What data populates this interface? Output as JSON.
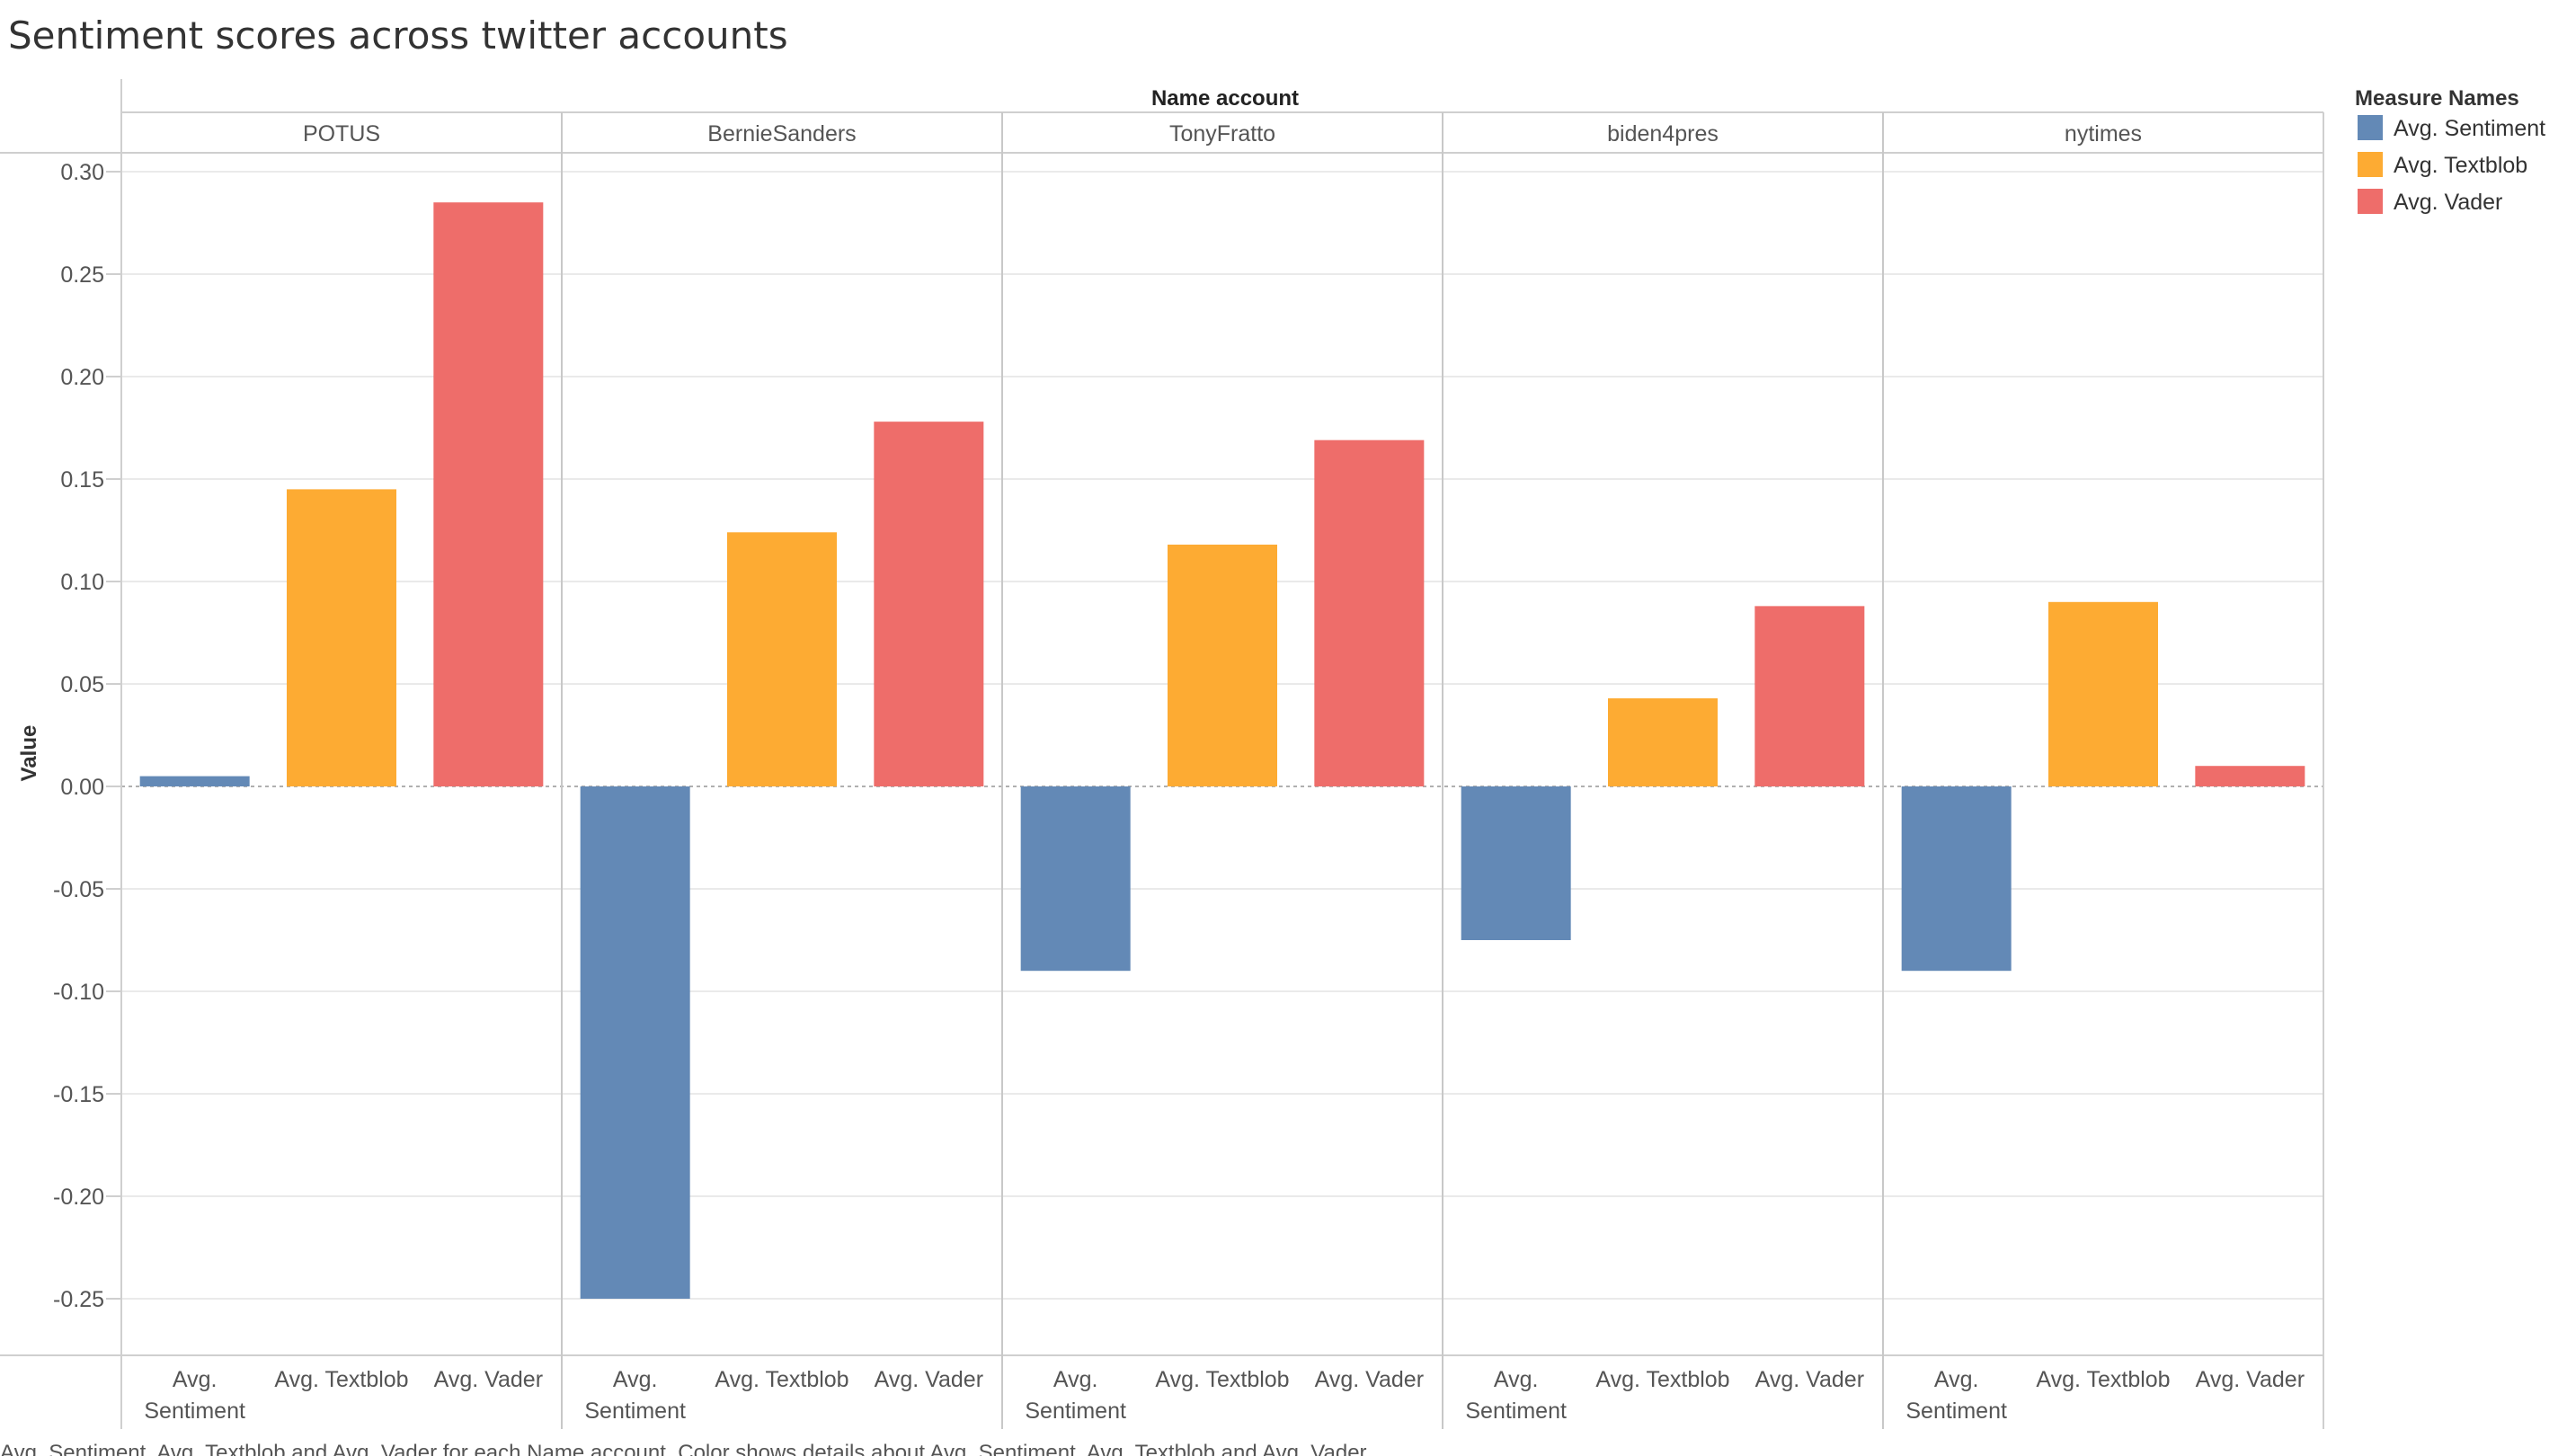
{
  "chart_data": {
    "type": "bar",
    "title": "Sentiment scores across twitter accounts",
    "column_header": "Name account",
    "ylabel": "Value",
    "ylim": [
      -0.28,
      0.31
    ],
    "yticks": [
      "0.30",
      "0.25",
      "0.20",
      "0.15",
      "0.10",
      "0.05",
      "0.00",
      "-0.05",
      "-0.10",
      "-0.15",
      "-0.20",
      "-0.25"
    ],
    "ytick_values": [
      0.3,
      0.25,
      0.2,
      0.15,
      0.1,
      0.05,
      0.0,
      -0.05,
      -0.1,
      -0.15,
      -0.2,
      -0.25
    ],
    "groups": [
      "POTUS",
      "BernieSanders",
      "TonyFratto",
      "biden4pres",
      "nytimes"
    ],
    "measures": [
      {
        "name": "Avg. Sentiment",
        "axis_label": [
          "Avg.",
          "Sentiment"
        ],
        "color": "#6389b6"
      },
      {
        "name": "Avg. Textblob",
        "axis_label": [
          "Avg. Textblob"
        ],
        "color": "#fdab33"
      },
      {
        "name": "Avg. Vader",
        "axis_label": [
          "Avg. Vader"
        ],
        "color": "#ee6d6a"
      }
    ],
    "series": [
      {
        "name": "Avg. Sentiment",
        "values": [
          0.005,
          -0.25,
          -0.09,
          -0.075,
          -0.09
        ]
      },
      {
        "name": "Avg. Textblob",
        "values": [
          0.145,
          0.124,
          0.118,
          0.043,
          0.09
        ]
      },
      {
        "name": "Avg. Vader",
        "values": [
          0.285,
          0.178,
          0.169,
          0.088,
          0.01
        ]
      }
    ],
    "legend": {
      "title": "Measure Names",
      "position": "top-right",
      "items": [
        "Avg. Sentiment",
        "Avg. Textblob",
        "Avg. Vader"
      ]
    },
    "caption": "Avg. Sentiment, Avg. Textblob and Avg. Vader for each Name account.  Color shows details about Avg. Sentiment, Avg. Textblob and Avg. Vader.",
    "grid": true
  }
}
